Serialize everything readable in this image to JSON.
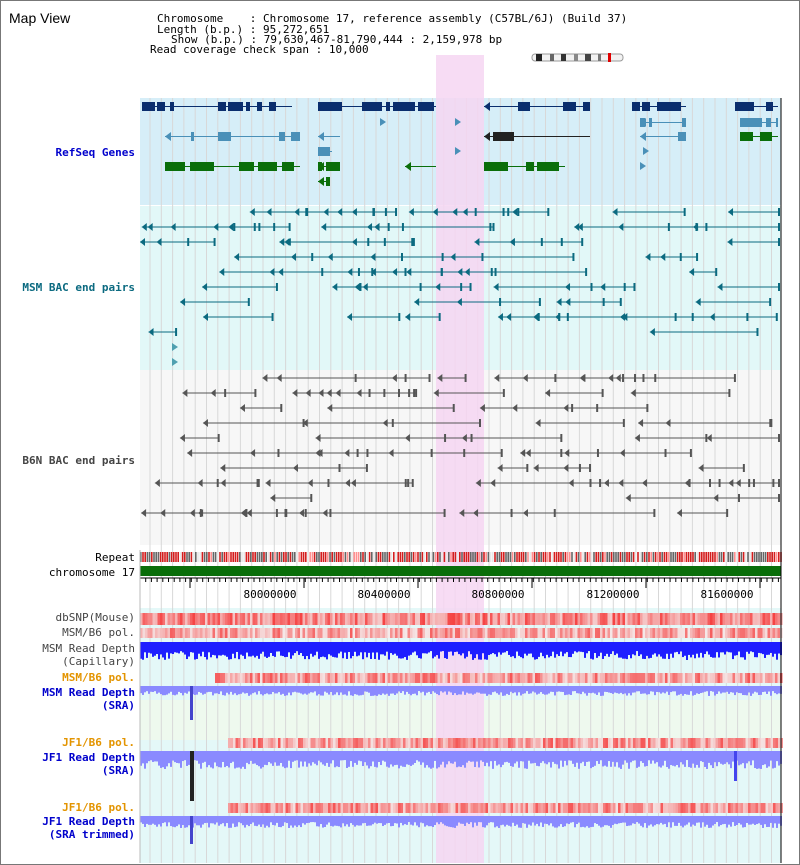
{
  "window": {
    "title": "Map View"
  },
  "header": {
    "chromosome_label": "Chromosome",
    "chromosome_value": "Chromosome 17, reference assembly (C57BL/6J) (Build 37)",
    "length_label": "Length (b.p.)",
    "length_value": "95,272,651",
    "show_label": "Show (b.p.)",
    "show_value": "79,630,467-81,790,444 : 2,159,978 bp",
    "coverage_label": "Read coverage check span",
    "coverage_value": "10,000"
  },
  "tracks": {
    "refseq": "RefSeq Genes",
    "msm_bac": "MSM BAC end pairs",
    "b6n_bac": "B6N BAC end pairs",
    "repeat": "Repeat",
    "chromosome": "chromosome 17",
    "dbsnp": "dbSNP(Mouse)",
    "msm_b6_pol_1": "MSM/B6 pol.",
    "msm_read_depth_cap_1": "MSM Read Depth",
    "msm_read_depth_cap_2": "(Capillary)",
    "msm_b6_pol_2": "MSM/B6 pol.",
    "msm_read_depth_sra_1": "MSM Read Depth",
    "msm_read_depth_sra_2": "(SRA)",
    "jf1_b6_pol_1": "JF1/B6 pol.",
    "jf1_read_depth_sra_1": "JF1 Read Depth",
    "jf1_read_depth_sra_2": "(SRA)",
    "jf1_b6_pol_2": "JF1/B6 pol.",
    "jf1_read_depth_trim_1": "JF1 Read Depth",
    "jf1_read_depth_trim_2": "(SRA trimmed)"
  },
  "axis": {
    "ticks": [
      "80000000",
      "80400000",
      "80800000",
      "81200000",
      "81600000"
    ]
  },
  "colors": {
    "highlight": "#f6d6f2",
    "refseq_bg": "#d6eef8",
    "bac_bg": "#e2f8f8",
    "dark_gene": "#0a2e6e",
    "mid_gene": "#4a90b8",
    "green_gene": "#0a6e0a",
    "depth_blue": "#1e1eff",
    "depth_light": "#8a8aff",
    "snp_red": "#ee3333"
  }
}
